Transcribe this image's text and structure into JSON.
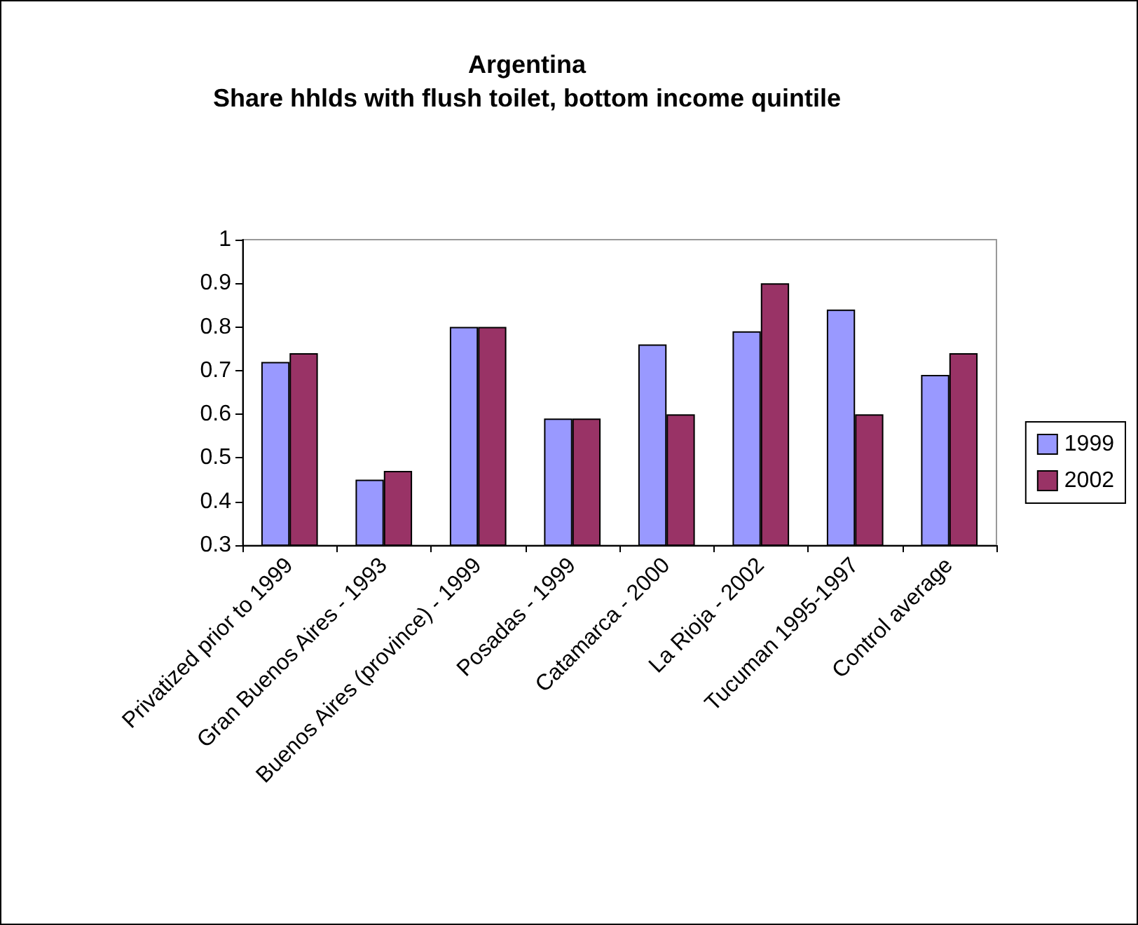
{
  "chart_data": {
    "type": "bar",
    "title": "Argentina\nShare hhlds with flush toilet, bottom income quintile",
    "categories": [
      "Privatized prior to 1999",
      "Gran Buenos Aires - 1993",
      "Buenos Aires (province) - 1999",
      "Posadas - 1999",
      "Catamarca - 2000",
      "La Rioja - 2002",
      "Tucuman 1995-1997",
      "Control average"
    ],
    "series": [
      {
        "name": "1999",
        "color": "#9999ff",
        "values": [
          0.72,
          0.45,
          0.8,
          0.59,
          0.76,
          0.79,
          0.84,
          0.69
        ]
      },
      {
        "name": "2002",
        "color": "#993366",
        "values": [
          0.74,
          0.47,
          0.8,
          0.59,
          0.6,
          0.9,
          0.6,
          0.74
        ]
      }
    ],
    "ylim": [
      0.3,
      1
    ],
    "yticks": [
      0.3,
      0.4,
      0.5,
      0.6,
      0.7,
      0.8,
      0.9,
      1
    ],
    "grid": false,
    "legend": "right"
  }
}
